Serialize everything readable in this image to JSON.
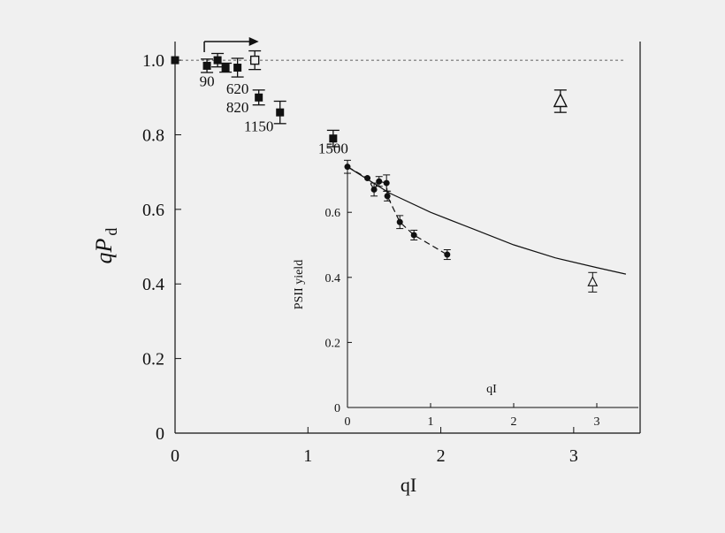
{
  "chart_data": [
    {
      "type": "scatter",
      "title": "",
      "xlabel": "qI",
      "ylabel_main": "qP",
      "ylabel_sub": "d",
      "xlim": [
        0,
        3.5
      ],
      "ylim": [
        0,
        1.05
      ],
      "xticks": [
        "0",
        "1",
        "2",
        "3"
      ],
      "yticks": [
        "0",
        "0.2",
        "0.4",
        "0.6",
        "0.8",
        "1.0"
      ],
      "reference_line": 1.0,
      "arrow": {
        "from_x": 0.22,
        "to_x": 0.63,
        "y": 1.05
      },
      "series": [
        {
          "marker": "filled-square",
          "x": [
            0.0,
            0.24,
            0.32,
            0.38,
            0.47,
            0.63,
            0.79,
            1.19
          ],
          "y": [
            1.0,
            0.985,
            1.0,
            0.98,
            0.98,
            0.9,
            0.86,
            0.79
          ],
          "err": [
            0,
            0.018,
            0.018,
            0.012,
            0.025,
            0.02,
            0.03,
            0.022
          ]
        },
        {
          "marker": "open-square",
          "x": [
            0.6
          ],
          "y": [
            1.0
          ],
          "err": [
            0.025
          ]
        },
        {
          "marker": "open-triangle",
          "x": [
            2.9
          ],
          "y": [
            0.89
          ],
          "err": [
            0.03
          ]
        }
      ],
      "annotations": [
        {
          "text": "90",
          "x": 0.24,
          "y": 0.93
        },
        {
          "text": "620",
          "x": 0.47,
          "y": 0.91
        },
        {
          "text": "820",
          "x": 0.47,
          "y": 0.86
        },
        {
          "text": "1150",
          "x": 0.63,
          "y": 0.81
        },
        {
          "text": "1500",
          "x": 1.19,
          "y": 0.75
        }
      ]
    },
    {
      "type": "line",
      "title": "",
      "xlabel": "qI",
      "ylabel": "PSII yield",
      "xlim": [
        0,
        3.5
      ],
      "ylim": [
        0,
        0.75
      ],
      "xticks": [
        "0",
        "1",
        "2",
        "3"
      ],
      "yticks": [
        "0",
        "0.2",
        "0.4",
        "0.6"
      ],
      "series": [
        {
          "style": "solid-curve",
          "x": [
            0,
            0.5,
            1.0,
            1.5,
            2.0,
            2.5,
            3.0,
            3.35
          ],
          "y": [
            0.74,
            0.66,
            0.6,
            0.55,
            0.5,
            0.46,
            0.43,
            0.41
          ]
        },
        {
          "style": "dashed-with-points",
          "x": [
            0.0,
            0.24,
            0.32,
            0.38,
            0.47,
            0.48,
            0.63,
            0.8,
            1.2
          ],
          "y": [
            0.74,
            0.705,
            0.67,
            0.695,
            0.69,
            0.65,
            0.57,
            0.53,
            0.47
          ],
          "err": [
            0.02,
            0.0,
            0.02,
            0.015,
            0.025,
            0.015,
            0.02,
            0.015,
            0.015
          ]
        },
        {
          "style": "open-triangle",
          "x": [
            2.95
          ],
          "y": [
            0.385
          ],
          "err": [
            0.03
          ]
        }
      ]
    }
  ]
}
